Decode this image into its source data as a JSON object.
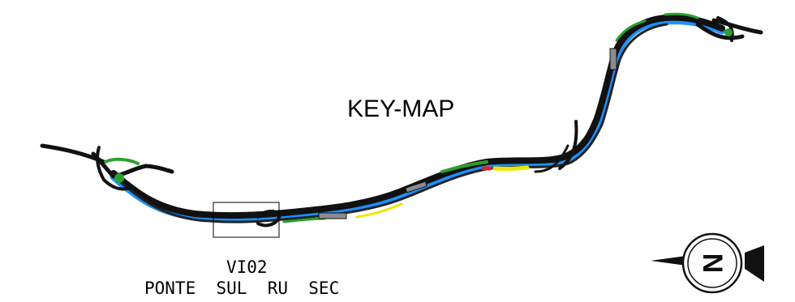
{
  "map": {
    "title": "KEY-MAP",
    "highlight": {
      "code": "VI02",
      "name": "PONTE  SUL  RU  SEC"
    },
    "north_arrow": {
      "letter": "N"
    },
    "colors": {
      "road": "#111111",
      "edge": "#1e90ff",
      "green": "#2ca02c",
      "yellow": "#e8e800",
      "red": "#d62728",
      "gray": "#8c8c8c"
    }
  }
}
